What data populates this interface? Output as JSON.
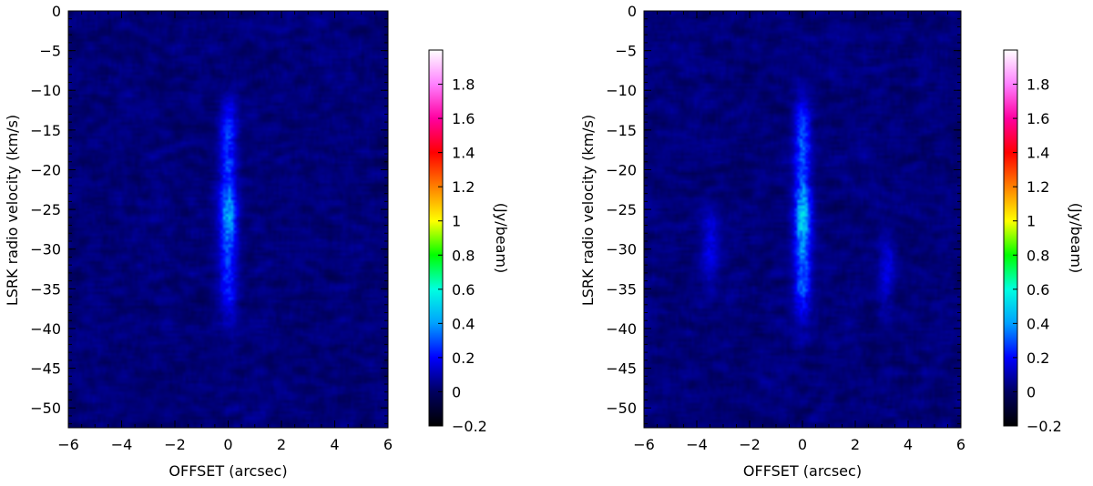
{
  "chart_data": [
    {
      "type": "heatmap",
      "xlabel": "OFFSET (arcsec)",
      "ylabel": "LSRK radio velocity  (km/s)",
      "xlim": [
        -6,
        6
      ],
      "ylim": [
        -52.5,
        0
      ],
      "xticks": [
        -6,
        -4,
        -2,
        0,
        2,
        4,
        6
      ],
      "xtick_labels": [
        "−6",
        "−4",
        "−2",
        "0",
        "2",
        "4",
        "6"
      ],
      "yticks": [
        0,
        -5,
        -10,
        -15,
        -20,
        -25,
        -30,
        -35,
        -40,
        -45,
        -50
      ],
      "ytick_labels": [
        "0",
        "−5",
        "−10",
        "−15",
        "−20",
        "−25",
        "−30",
        "−35",
        "−40",
        "−45",
        "−50"
      ],
      "colorbar": {
        "label": "(Jy/beam)",
        "range": [
          -0.2,
          2.0
        ],
        "ticks": [
          -0.2,
          0,
          0.2,
          0.4,
          0.6,
          0.8,
          1,
          1.2,
          1.4,
          1.6,
          1.8
        ],
        "tick_labels": [
          "−0.2",
          "0",
          "0.2",
          "0.4",
          "0.6",
          "0.8",
          "1",
          "1.2",
          "1.4",
          "1.6",
          "1.8"
        ],
        "colormap": [
          "#000000",
          "#000060",
          "#0000ff",
          "#00a0ff",
          "#00ffe0",
          "#00ff00",
          "#ffff00",
          "#ff8000",
          "#ff0000",
          "#ff00a0",
          "#ff80ff",
          "#ffffff"
        ]
      },
      "emission_components": [
        {
          "offset": 0.0,
          "velocity_range": [
            -38,
            -12
          ],
          "peak_velocity": -26,
          "peak": 0.5
        }
      ]
    },
    {
      "type": "heatmap",
      "xlabel": "OFFSET (arcsec)",
      "ylabel": "LSRK radio velocity  (km/s)",
      "xlim": [
        -6,
        6
      ],
      "ylim": [
        -52.5,
        0
      ],
      "xticks": [
        -6,
        -4,
        -2,
        0,
        2,
        4,
        6
      ],
      "xtick_labels": [
        "−6",
        "−4",
        "−2",
        "0",
        "2",
        "4",
        "6"
      ],
      "yticks": [
        0,
        -5,
        -10,
        -15,
        -20,
        -25,
        -30,
        -35,
        -40,
        -45,
        -50
      ],
      "ytick_labels": [
        "0",
        "−5",
        "−10",
        "−15",
        "−20",
        "−25",
        "−30",
        "−35",
        "−40",
        "−45",
        "−50"
      ],
      "colorbar": {
        "label": "(Jy/beam)",
        "range": [
          -0.2,
          2.0
        ],
        "ticks": [
          -0.2,
          0,
          0.2,
          0.4,
          0.6,
          0.8,
          1,
          1.2,
          1.4,
          1.6,
          1.8
        ],
        "tick_labels": [
          "−0.2",
          "0",
          "0.2",
          "0.4",
          "0.6",
          "0.8",
          "1",
          "1.2",
          "1.4",
          "1.6",
          "1.8"
        ],
        "colormap": [
          "#000000",
          "#000060",
          "#0000ff",
          "#00a0ff",
          "#00ffe0",
          "#00ff00",
          "#ffff00",
          "#ff8000",
          "#ff0000",
          "#ff00a0",
          "#ff80ff",
          "#ffffff"
        ]
      },
      "emission_components": [
        {
          "offset": 0.0,
          "velocity_range": [
            -38,
            -12
          ],
          "peak_velocity": -26,
          "peak": 0.6
        },
        {
          "offset": -3.5,
          "velocity_range": [
            -35,
            -25
          ],
          "peak_velocity": -29,
          "peak": 0.18
        },
        {
          "offset": 3.2,
          "velocity_range": [
            -38,
            -28
          ],
          "peak_velocity": -33,
          "peak": 0.16
        }
      ]
    }
  ]
}
